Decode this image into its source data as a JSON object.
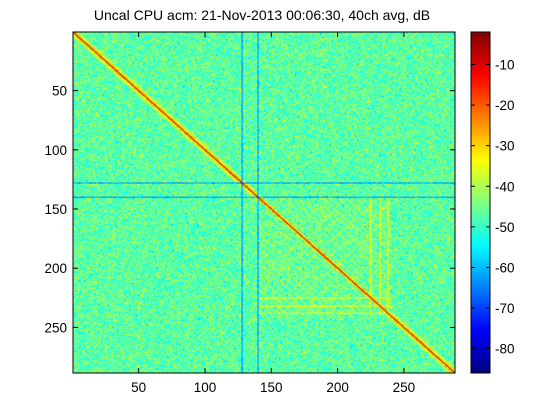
{
  "chart_data": {
    "type": "heatmap",
    "title": "Uncal CPU acm: 21-Nov-2013 00:06:30, 40ch avg, dB",
    "xlabel": "",
    "ylabel": "",
    "n": 288,
    "xlim": [
      0.5,
      288.5
    ],
    "ylim": [
      0.5,
      288.5
    ],
    "y_reversed": true,
    "x_ticks": [
      50,
      100,
      150,
      200,
      250
    ],
    "x_tick_labels": [
      "50",
      "100",
      "150",
      "200",
      "250"
    ],
    "y_ticks": [
      50,
      100,
      150,
      200,
      250
    ],
    "y_tick_labels": [
      "50",
      "100",
      "150",
      "200",
      "250"
    ],
    "colormap": "jet",
    "clim": [
      -86,
      -2
    ],
    "colorbar_ticks": [
      -10,
      -20,
      -30,
      -40,
      -50,
      -60,
      -70,
      -80
    ],
    "colorbar_tick_labels": [
      "-10",
      "-20",
      "-30",
      "-40",
      "-50",
      "-60",
      "-70",
      "-80"
    ],
    "features": {
      "diagonal_db": -3,
      "background_db": -47,
      "background_jitter_db": 7,
      "quiet_rows_cols": [
        128,
        140
      ],
      "quiet_db": -62,
      "bright_block": {
        "start": 140,
        "end": 240,
        "db": -40
      },
      "bright_lines": [
        225,
        232,
        238
      ],
      "bright_line_db": -35
    }
  }
}
